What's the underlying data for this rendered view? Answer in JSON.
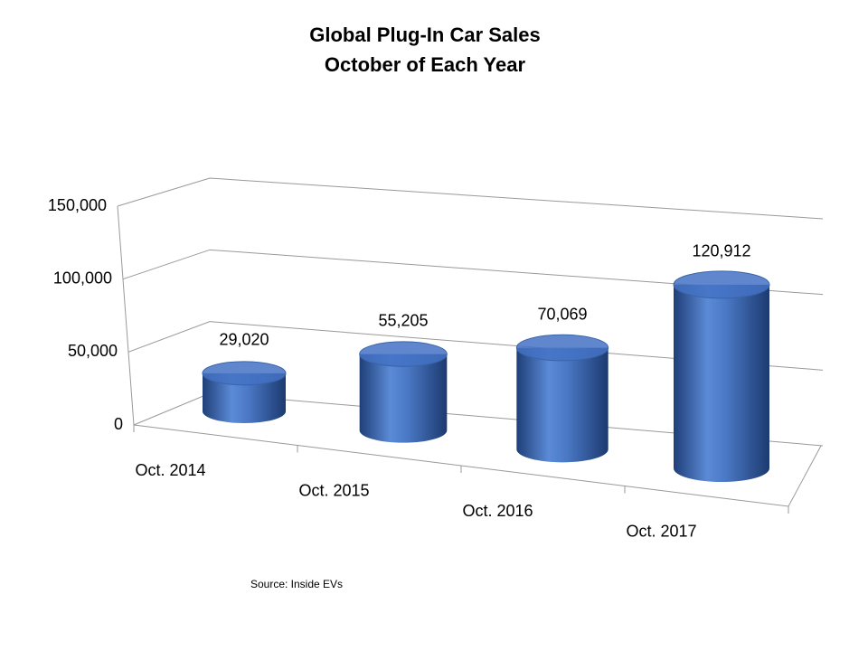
{
  "chart_data": {
    "type": "bar3d",
    "title": "Global Plug-In Car Sales",
    "subtitle": "October of Each Year",
    "categories": [
      "Oct. 2014",
      "Oct. 2015",
      "Oct. 2016",
      "Oct. 2017"
    ],
    "values": [
      29020,
      55205,
      70069,
      120912
    ],
    "value_labels": [
      "29,020",
      "55,205",
      "70,069",
      "120,912"
    ],
    "color": "#4472c4",
    "ylim": [
      0,
      150000
    ],
    "yticks": [
      0,
      {
        "value": 50000,
        "label": "50,000"
      },
      {
        "value": 100000,
        "label": "100,000"
      },
      {
        "value": 150000,
        "label": "150,000"
      }
    ],
    "grid": true,
    "note": "Source: Inside EVs"
  }
}
